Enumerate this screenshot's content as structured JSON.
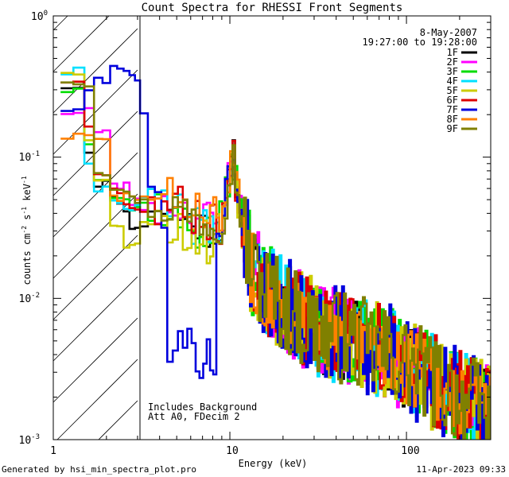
{
  "chart_data": {
    "type": "line",
    "title": "Count Spectra for RHESSI Front Segments",
    "xlabel": "Energy (keV)",
    "ylabel": "counts cm",
    "ylabel_exp1": "-2",
    "ylabel_mid": " s",
    "ylabel_exp2": "-1",
    "ylabel_end": " keV",
    "ylabel_exp3": "-1",
    "xscale": "log",
    "yscale": "log",
    "xlim": [
      1,
      300
    ],
    "ylim": [
      0.001,
      1
    ],
    "xticks": [
      {
        "v": 1,
        "label": "1"
      },
      {
        "v": 10,
        "label": "10"
      },
      {
        "v": 100,
        "label": "100"
      }
    ],
    "yticks": [
      {
        "v": 0.001,
        "m": "10",
        "e": "-3"
      },
      {
        "v": 0.01,
        "m": "10",
        "e": "-2"
      },
      {
        "v": 0.1,
        "m": "10",
        "e": "-1"
      },
      {
        "v": 1,
        "m": "10",
        "e": "0"
      }
    ],
    "shaded_region_xmax": 3,
    "date": "8-May-2007",
    "time_range": "19:27:00 to 19:28:00",
    "annotation_lines": [
      "Includes Background",
      "Att A0, FDecim 2"
    ],
    "series": [
      {
        "name": "1F",
        "color": "#000000",
        "lowend": [
          0.32,
          0.11,
          0.066,
          0.05,
          0.04,
          0.033,
          0.031
        ],
        "dip": 1.0,
        "noise": 0.55,
        "seed": 11
      },
      {
        "name": "2F",
        "color": "#ff00ff",
        "lowend": [
          0.21,
          0.22,
          0.15,
          0.062,
          0.064,
          0.048,
          0.044
        ],
        "dip": 1.15,
        "noise": 0.6,
        "seed": 23
      },
      {
        "name": "3F",
        "color": "#00dd00",
        "lowend": [
          0.3,
          0.13,
          0.074,
          0.053,
          0.05,
          0.043,
          0.047
        ],
        "dip": 0.9,
        "noise": 0.6,
        "seed": 37
      },
      {
        "name": "4F",
        "color": "#00e0ff",
        "lowend": [
          0.4,
          0.085,
          0.06,
          0.051,
          0.045,
          0.043,
          0.053
        ],
        "dip": 1.0,
        "noise": 0.6,
        "seed": 41
      },
      {
        "name": "5F",
        "color": "#cccc00",
        "lowend": [
          0.41,
          0.14,
          0.067,
          0.034,
          0.024,
          0.024,
          0.033
        ],
        "dip": 0.8,
        "noise": 0.65,
        "seed": 53
      },
      {
        "name": "6F",
        "color": "#dd0000",
        "lowend": [
          0.35,
          0.16,
          0.08,
          0.058,
          0.05,
          0.043,
          0.043
        ],
        "dip": 1.15,
        "noise": 0.6,
        "seed": 67
      },
      {
        "name": "7F",
        "color": "#0000dd",
        "lowend": [
          0.22,
          0.28,
          0.36,
          0.43,
          0.44,
          0.37,
          0.2
        ],
        "dip": 0.12,
        "noise": 0.65,
        "seed": 79
      },
      {
        "name": "8F",
        "color": "#ff8000",
        "lowend": [
          0.14,
          0.14,
          0.13,
          0.052,
          0.054,
          0.051,
          0.053
        ],
        "dip": 1.3,
        "noise": 0.5,
        "seed": 83
      },
      {
        "name": "9F",
        "color": "#808000",
        "lowend": [
          0.35,
          0.33,
          0.08,
          0.062,
          0.057,
          0.05,
          0.048
        ],
        "dip": 1.1,
        "noise": 0.6,
        "seed": 97
      }
    ]
  },
  "footer": {
    "left": "Generated by hsi_min_spectra_plot.pro",
    "right": "11-Apr-2023 09:33"
  }
}
